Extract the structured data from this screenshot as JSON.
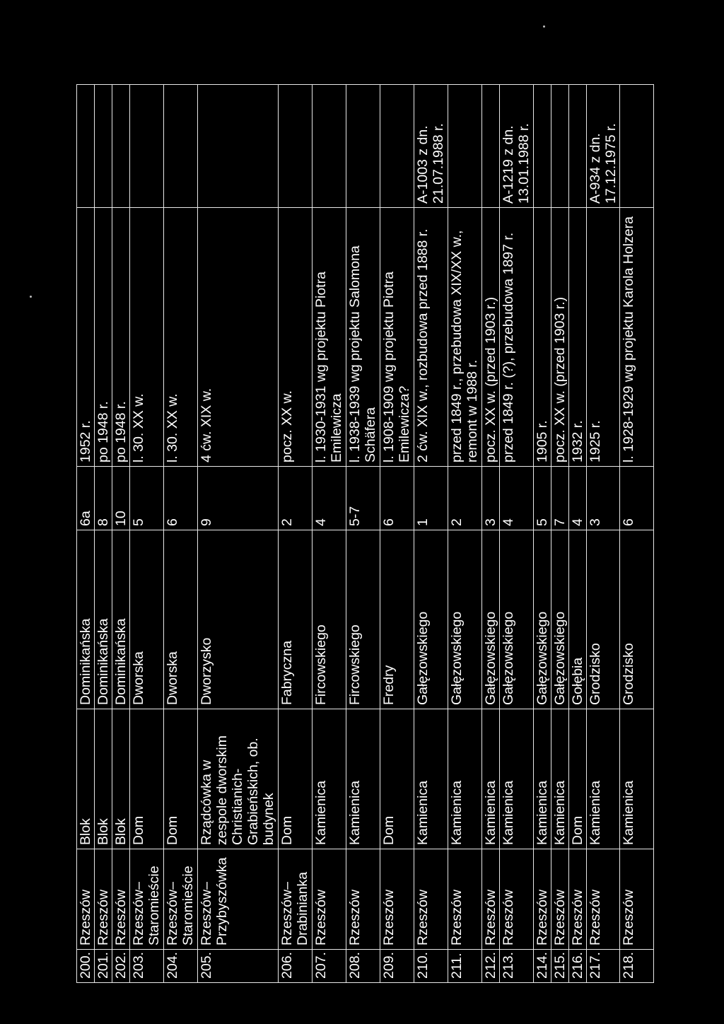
{
  "rows": [
    {
      "no": "200.",
      "locality": "Rzeszów",
      "object": "Blok",
      "street": "Dominikańska",
      "number": "6a",
      "dating": "1952 r.",
      "register": ""
    },
    {
      "no": "201.",
      "locality": "Rzeszów",
      "object": "Blok",
      "street": "Dominikańska",
      "number": "8",
      "dating": "po 1948 r.",
      "register": ""
    },
    {
      "no": "202.",
      "locality": "Rzeszów",
      "object": "Blok",
      "street": "Dominikańska",
      "number": "10",
      "dating": "po 1948 r.",
      "register": ""
    },
    {
      "no": "203.",
      "locality": "Rzeszów– Staromieście",
      "object": "Dom",
      "street": "Dworska",
      "number": "5",
      "dating": "l. 30. XX w.",
      "register": ""
    },
    {
      "no": "204.",
      "locality": "Rzeszów– Staromieście",
      "object": "Dom",
      "street": "Dworska",
      "number": "6",
      "dating": "l. 30. XX w.",
      "register": ""
    },
    {
      "no": "205.",
      "locality": "Rzeszów– Przybyszówka",
      "object": "Rządcówka w zespole dworskim Christianich- Grabieńskich, ob. budynek",
      "street": "Dworzysko",
      "number": "9",
      "dating": "4 ćw. XIX w.",
      "register": ""
    },
    {
      "no": "206.",
      "locality": "Rzeszów– Drabinianka",
      "object": "Dom",
      "street": "Fabryczna",
      "number": "2",
      "dating": "pocz. XX w.",
      "register": ""
    },
    {
      "no": "207.",
      "locality": "Rzeszów",
      "object": "Kamienica",
      "street": "Fircowskiego",
      "number": "4",
      "dating": "l. 1930-1931 wg projektu Piotra Emilewicza",
      "register": ""
    },
    {
      "no": "208.",
      "locality": "Rzeszów",
      "object": "Kamienica",
      "street": "Fircowskiego",
      "number": "5-7",
      "dating": "l. 1938-1939 wg projektu Salomona Schäfera",
      "register": ""
    },
    {
      "no": "209.",
      "locality": "Rzeszów",
      "object": "Dom",
      "street": "Fredry",
      "number": "6",
      "dating": "l. 1908-1909 wg projektu Piotra Emilewicza?",
      "register": ""
    },
    {
      "no": "210.",
      "locality": "Rzeszów",
      "object": "Kamienica",
      "street": "Gałęzowskiego",
      "number": "1",
      "dating": "2 ćw. XIX w., rozbudowa przed 1888 r.",
      "register": "A-1003 z dn. 21.07.1988 r."
    },
    {
      "no": "211.",
      "locality": "Rzeszów",
      "object": "Kamienica",
      "street": "Gałęzowskiego",
      "number": "2",
      "dating": "przed 1849 r., przebudowa XIX/XX w., remont w 1988 r.",
      "register": ""
    },
    {
      "no": "212.",
      "locality": "Rzeszów",
      "object": "Kamienica",
      "street": "Gałęzowskiego",
      "number": "3",
      "dating": "pocz. XX w. (przed 1903 r.)",
      "register": ""
    },
    {
      "no": "213.",
      "locality": "Rzeszów",
      "object": "Kamienica",
      "street": "Gałęzowskiego",
      "number": "4",
      "dating": "przed 1849 r. (?), przebudowa 1897 r.",
      "register": "A-1219 z dn. 13.01.1988 r."
    },
    {
      "no": "214.",
      "locality": "Rzeszów",
      "object": "Kamienica",
      "street": "Gałęzowskiego",
      "number": "5",
      "dating": "1905 r.",
      "register": ""
    },
    {
      "no": "215.",
      "locality": "Rzeszów",
      "object": "Kamienica",
      "street": "Gałęzowskiego",
      "number": "7",
      "dating": "pocz. XX w. (przed 1903 r.)",
      "register": ""
    },
    {
      "no": "216.",
      "locality": "Rzeszów",
      "object": "Dom",
      "street": "Gołębia",
      "number": "4",
      "dating": "1932 r.",
      "register": ""
    },
    {
      "no": "217.",
      "locality": "Rzeszów",
      "object": "Kamienica",
      "street": "Grodzisko",
      "number": "3",
      "dating": "1925 r.",
      "register": "A-934 z dn. 17.12.1975 r."
    },
    {
      "no": "218.",
      "locality": "Rzeszów",
      "object": "Kamienica",
      "street": "Grodzisko",
      "number": "6",
      "dating": "l. 1928-1929 wg projektu Karola Holzera",
      "register": ""
    }
  ]
}
